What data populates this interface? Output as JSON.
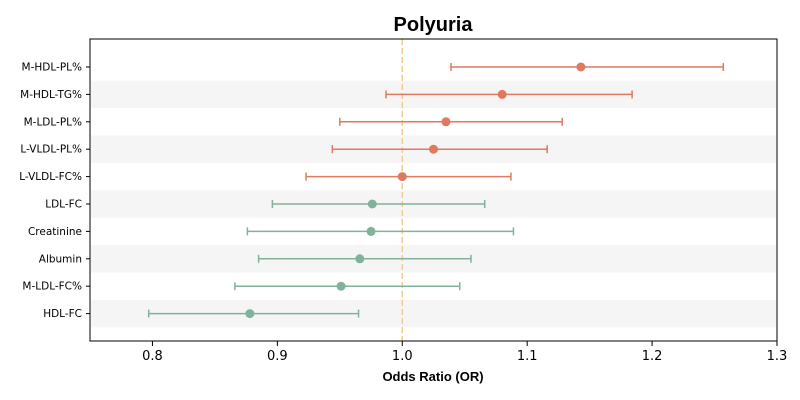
{
  "chart_data": {
    "type": "forest",
    "title": "Polyuria",
    "xlabel": "Odds Ratio (OR)",
    "xlim": [
      0.75,
      1.3
    ],
    "xticks": [
      "0.8",
      "0.9",
      "1.0",
      "1.1",
      "1.2",
      "1.3"
    ],
    "xtick_values": [
      0.8,
      0.9,
      1.0,
      1.1,
      1.2,
      1.3
    ],
    "reference_line": 1.0,
    "categories": [
      "M-HDL-PL%",
      "M-HDL-TG%",
      "M-LDL-PL%",
      "L-VLDL-PL%",
      "L-VLDL-FC%",
      "LDL-FC",
      "Creatinine",
      "Albumin",
      "M-LDL-FC%",
      "HDL-FC"
    ],
    "or": [
      1.143,
      1.08,
      1.035,
      1.025,
      1.0,
      0.976,
      0.975,
      0.966,
      0.951,
      0.878
    ],
    "ci_low": [
      1.039,
      0.987,
      0.95,
      0.944,
      0.923,
      0.896,
      0.876,
      0.885,
      0.866,
      0.797
    ],
    "ci_high": [
      1.257,
      1.184,
      1.128,
      1.116,
      1.087,
      1.066,
      1.089,
      1.055,
      1.046,
      0.965
    ],
    "colors": {
      "risk": "#e07a5f",
      "protective": "#81b29a",
      "reference": "#f2cc8f",
      "band": "#f5f5f5"
    }
  }
}
